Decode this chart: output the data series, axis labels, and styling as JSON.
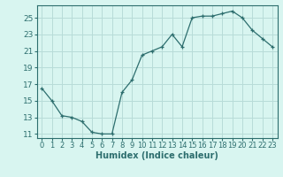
{
  "x": [
    0,
    1,
    2,
    3,
    4,
    5,
    6,
    7,
    8,
    9,
    10,
    11,
    12,
    13,
    14,
    15,
    16,
    17,
    18,
    19,
    20,
    21,
    22,
    23
  ],
  "y": [
    16.5,
    15.0,
    13.2,
    13.0,
    12.5,
    11.2,
    11.0,
    11.0,
    16.0,
    17.5,
    20.5,
    21.0,
    21.5,
    23.0,
    21.5,
    25.0,
    25.2,
    25.2,
    25.5,
    25.8,
    25.0,
    23.5,
    22.5,
    21.5
  ],
  "xlabel": "Humidex (Indice chaleur)",
  "ylabel": "",
  "xlim": [
    -0.5,
    23.5
  ],
  "ylim": [
    10.5,
    26.5
  ],
  "yticks": [
    11,
    13,
    15,
    17,
    19,
    21,
    23,
    25
  ],
  "xticks": [
    0,
    1,
    2,
    3,
    4,
    5,
    6,
    7,
    8,
    9,
    10,
    11,
    12,
    13,
    14,
    15,
    16,
    17,
    18,
    19,
    20,
    21,
    22,
    23
  ],
  "xtick_labels": [
    "0",
    "1",
    "2",
    "3",
    "4",
    "5",
    "6",
    "7",
    "8",
    "9",
    "10",
    "11",
    "12",
    "13",
    "14",
    "15",
    "16",
    "17",
    "18",
    "19",
    "20",
    "21",
    "22",
    "23"
  ],
  "line_color": "#2d6e6e",
  "marker": "+",
  "bg_color": "#d8f5f0",
  "grid_color": "#b8dcd8",
  "axis_color": "#2d6e6e",
  "label_color": "#2d6e6e",
  "tick_color": "#2d6e6e",
  "xlabel_fontsize": 7,
  "tick_fontsize": 6.5
}
